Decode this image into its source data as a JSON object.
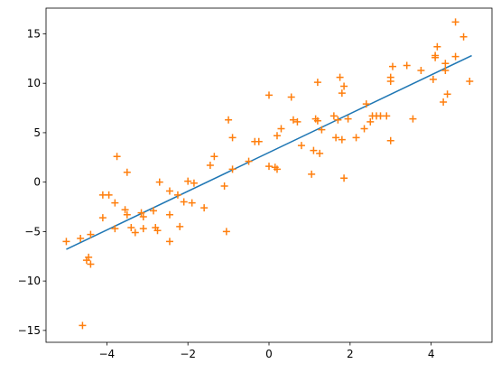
{
  "chart_data": {
    "type": "scatter",
    "title": "",
    "xlabel": "",
    "ylabel": "",
    "xlim": [
      -5.5,
      5.5
    ],
    "ylim": [
      -16.2,
      17.6
    ],
    "xticks": [
      -4,
      -2,
      0,
      2,
      4
    ],
    "yticks": [
      -15,
      -10,
      -5,
      0,
      5,
      10,
      15
    ],
    "xtick_labels": [
      "−4",
      "−2",
      "0",
      "2",
      "4"
    ],
    "ytick_labels": [
      "−15",
      "−10",
      "−5",
      "0",
      "5",
      "10",
      "15"
    ],
    "grid": false,
    "legend": "none",
    "series": [
      {
        "type": "line",
        "color": "#1f77b4",
        "x": [
          -5.0,
          5.0
        ],
        "y": [
          -6.8,
          12.8
        ]
      },
      {
        "type": "scatter",
        "marker": "plus",
        "color": "#ff7f0e",
        "points": [
          [
            -5.0,
            -6.0
          ],
          [
            -4.65,
            -5.7
          ],
          [
            -4.6,
            -14.5
          ],
          [
            -4.5,
            -7.9
          ],
          [
            -4.45,
            -7.6
          ],
          [
            -4.4,
            -8.3
          ],
          [
            -4.4,
            -5.3
          ],
          [
            -4.1,
            -1.3
          ],
          [
            -4.1,
            -3.6
          ],
          [
            -3.95,
            -1.3
          ],
          [
            -3.8,
            -2.1
          ],
          [
            -3.8,
            -4.7
          ],
          [
            -3.75,
            2.6
          ],
          [
            -3.55,
            -2.8
          ],
          [
            -3.5,
            1.0
          ],
          [
            -3.5,
            -3.3
          ],
          [
            -3.4,
            -4.6
          ],
          [
            -3.3,
            -5.1
          ],
          [
            -3.15,
            -3.1
          ],
          [
            -3.1,
            -3.5
          ],
          [
            -3.1,
            -4.7
          ],
          [
            -2.85,
            -2.9
          ],
          [
            -2.8,
            -4.6
          ],
          [
            -2.75,
            -4.9
          ],
          [
            -2.7,
            0.0
          ],
          [
            -2.45,
            -0.9
          ],
          [
            -2.45,
            -3.3
          ],
          [
            -2.45,
            -6.0
          ],
          [
            -2.25,
            -1.3
          ],
          [
            -2.2,
            -4.5
          ],
          [
            -2.1,
            -2.0
          ],
          [
            -2.0,
            0.1
          ],
          [
            -1.9,
            -2.1
          ],
          [
            -1.85,
            -0.1
          ],
          [
            -1.6,
            -2.6
          ],
          [
            -1.45,
            1.7
          ],
          [
            -1.35,
            2.6
          ],
          [
            -1.1,
            -0.4
          ],
          [
            -1.05,
            -5.0
          ],
          [
            -1.0,
            6.3
          ],
          [
            -0.9,
            4.5
          ],
          [
            -0.9,
            1.3
          ],
          [
            -0.5,
            2.1
          ],
          [
            -0.35,
            4.1
          ],
          [
            -0.25,
            4.1
          ],
          [
            0.0,
            8.8
          ],
          [
            0.0,
            1.6
          ],
          [
            0.15,
            1.5
          ],
          [
            0.2,
            1.3
          ],
          [
            0.2,
            4.7
          ],
          [
            0.3,
            5.4
          ],
          [
            0.55,
            8.6
          ],
          [
            0.6,
            6.3
          ],
          [
            0.7,
            6.1
          ],
          [
            0.8,
            3.7
          ],
          [
            1.05,
            0.8
          ],
          [
            1.1,
            3.2
          ],
          [
            1.15,
            6.4
          ],
          [
            1.2,
            6.2
          ],
          [
            1.2,
            10.1
          ],
          [
            1.25,
            2.9
          ],
          [
            1.3,
            5.3
          ],
          [
            1.6,
            6.7
          ],
          [
            1.65,
            4.5
          ],
          [
            1.7,
            6.3
          ],
          [
            1.75,
            10.6
          ],
          [
            1.8,
            9.0
          ],
          [
            1.8,
            4.3
          ],
          [
            1.85,
            0.4
          ],
          [
            1.85,
            9.7
          ],
          [
            1.95,
            6.4
          ],
          [
            2.15,
            4.5
          ],
          [
            2.35,
            5.4
          ],
          [
            2.4,
            7.9
          ],
          [
            2.5,
            6.1
          ],
          [
            2.55,
            6.7
          ],
          [
            2.65,
            6.7
          ],
          [
            2.75,
            6.7
          ],
          [
            2.9,
            6.7
          ],
          [
            3.0,
            4.2
          ],
          [
            3.0,
            10.6
          ],
          [
            3.0,
            10.2
          ],
          [
            3.05,
            11.7
          ],
          [
            3.4,
            11.8
          ],
          [
            3.55,
            6.4
          ],
          [
            3.75,
            11.3
          ],
          [
            4.05,
            10.4
          ],
          [
            4.1,
            12.6
          ],
          [
            4.1,
            12.8
          ],
          [
            4.15,
            13.7
          ],
          [
            4.3,
            8.1
          ],
          [
            4.35,
            11.3
          ],
          [
            4.35,
            12.0
          ],
          [
            4.4,
            8.9
          ],
          [
            4.6,
            12.7
          ],
          [
            4.6,
            16.2
          ],
          [
            4.8,
            14.7
          ],
          [
            4.95,
            10.2
          ]
        ]
      }
    ]
  }
}
